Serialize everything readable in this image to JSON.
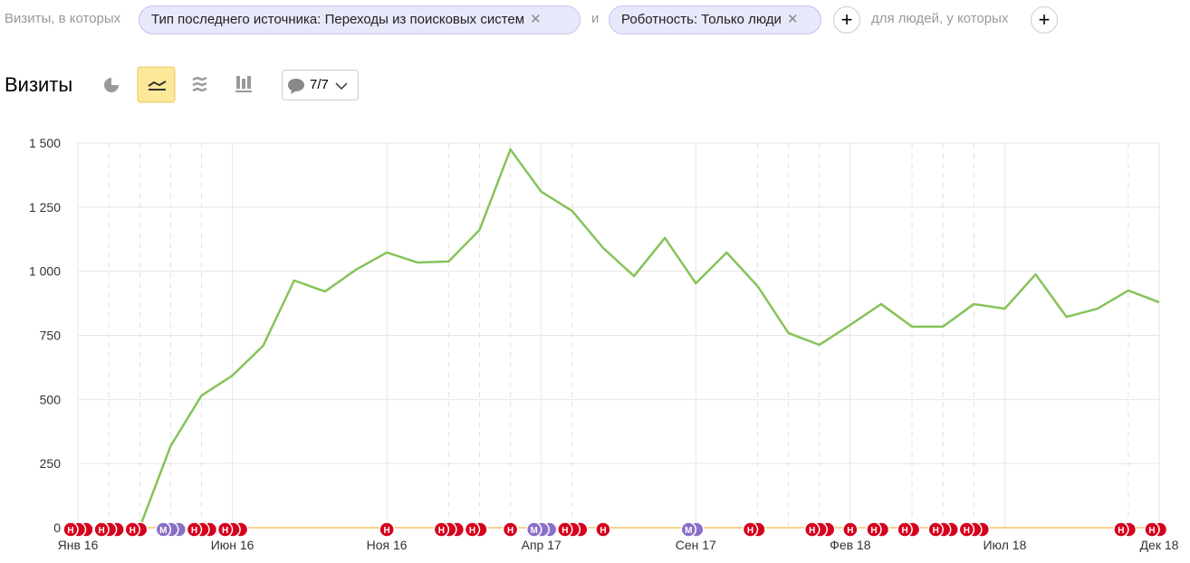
{
  "filters": {
    "prefix": "Визиты, в которых",
    "chips": [
      "Тип последнего источника: Переходы из поисковых систем",
      "Роботность: Только люди"
    ],
    "joiner": "и",
    "people": "для людей, у которых"
  },
  "toolbar": {
    "title": "Визиты",
    "notes_button": "7/7"
  },
  "chart_data": {
    "type": "line",
    "categories": [
      "Янв 16",
      null,
      null,
      null,
      null,
      "Июн 16",
      null,
      null,
      null,
      null,
      "Ноя 16",
      null,
      null,
      null,
      null,
      "Апр 17",
      null,
      null,
      null,
      null,
      "Сен 17",
      null,
      null,
      null,
      null,
      "Фев 18",
      null,
      null,
      null,
      null,
      "Июл 18",
      null,
      null,
      null,
      null,
      "Дек 18"
    ],
    "series": [
      {
        "name": "Визиты",
        "color": "#86c35a",
        "values": [
          null,
          null,
          0,
          318,
          515,
          593,
          710,
          964,
          921,
          1006,
          1073,
          1034,
          1038,
          1161,
          1475,
          1310,
          1235,
          1091,
          981,
          1130,
          953,
          1073,
          942,
          759,
          713,
          791,
          872,
          784,
          784,
          872,
          854,
          988,
          822,
          854,
          925,
          879
        ]
      }
    ],
    "ylim": [
      0,
      1500
    ],
    "yticks": [
      0,
      250,
      500,
      750,
      {
        "value": 1000,
        "label": "1 000"
      },
      {
        "value": 1250,
        "label": "1 250"
      },
      {
        "value": 1500,
        "label": "1 500"
      }
    ],
    "grid": true,
    "annotations": [
      "Н",
      "Н",
      "Н",
      "М",
      "Н",
      "Н",
      "Н",
      "Н",
      "Н",
      "Н",
      "М",
      "Н",
      "Н",
      "М",
      "Н",
      "Н",
      "Н",
      "Н",
      "Н",
      "Н",
      "Н",
      "Н",
      "Н"
    ]
  }
}
